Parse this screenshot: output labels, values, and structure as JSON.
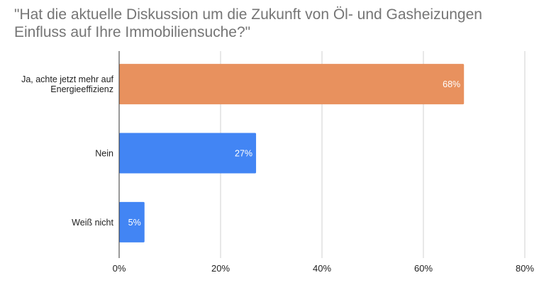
{
  "chart_data": {
    "type": "bar",
    "orientation": "horizontal",
    "title": "\"Hat die aktuelle Diskussion um die Zukunft von Öl- und Gasheizungen Einfluss auf Ihre Immobiliensuche?\"",
    "categories": [
      [
        "Ja, achte jetzt mehr auf",
        "Energieeffizienz"
      ],
      [
        "Nein"
      ],
      [
        "Weiß nicht"
      ]
    ],
    "values": [
      68,
      27,
      5
    ],
    "data_labels": [
      "68%",
      "27%",
      "5%"
    ],
    "colors": [
      "#E8915E",
      "#4285F4",
      "#4285F4"
    ],
    "xlim": [
      0,
      80
    ],
    "xticks": [
      0,
      20,
      40,
      60,
      80
    ],
    "xtick_labels": [
      "0%",
      "20%",
      "40%",
      "60%",
      "80%"
    ],
    "grid": true,
    "legend": "none"
  }
}
